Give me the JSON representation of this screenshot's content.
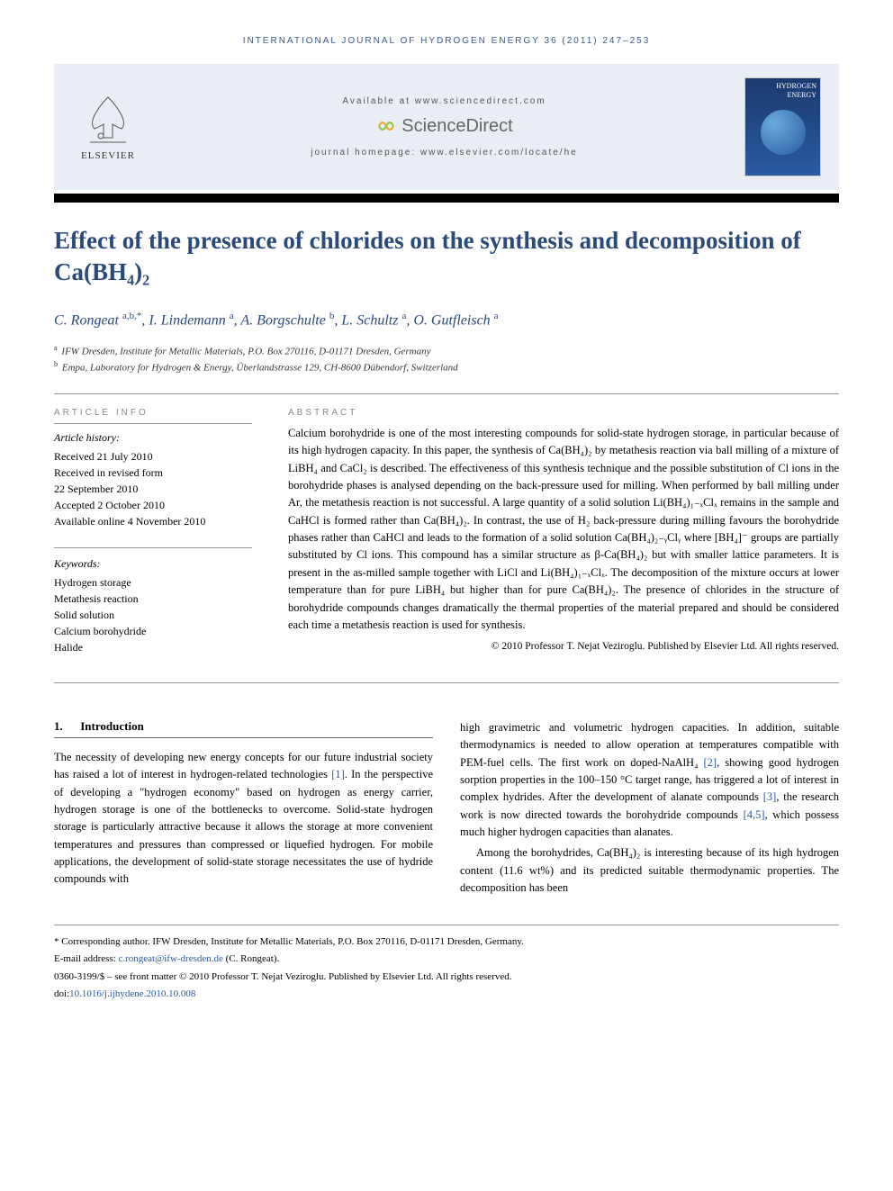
{
  "running_header": "INTERNATIONAL JOURNAL OF HYDROGEN ENERGY 36 (2011) 247–253",
  "banner": {
    "available_at": "Available at www.sciencedirect.com",
    "sciencedirect": "ScienceDirect",
    "homepage": "journal homepage: www.elsevier.com/locate/he",
    "elsevier": "ELSEVIER",
    "cover_text": "HYDROGEN ENERGY"
  },
  "title": "Effect of the presence of chlorides on the synthesis and decomposition of Ca(BH₄)₂",
  "authors_html": "C. Rongeat <sup>a,b,*</sup>, I. Lindemann <sup>a</sup>, A. Borgschulte <sup>b</sup>, L. Schultz <sup>a</sup>, O. Gutfleisch <sup>a</sup>",
  "affiliations": [
    {
      "sup": "a",
      "text": "IFW Dresden, Institute for Metallic Materials, P.O. Box 270116, D-01171 Dresden, Germany"
    },
    {
      "sup": "b",
      "text": "Empa, Laboratory for Hydrogen & Energy, Überlandstrasse 129, CH-8600 Dübendorf, Switzerland"
    }
  ],
  "article_info": {
    "header": "ARTICLE INFO",
    "history_label": "Article history:",
    "history": [
      "Received 21 July 2010",
      "Received in revised form",
      "22 September 2010",
      "Accepted 2 October 2010",
      "Available online 4 November 2010"
    ],
    "keywords_label": "Keywords:",
    "keywords": [
      "Hydrogen storage",
      "Metathesis reaction",
      "Solid solution",
      "Calcium borohydride",
      "Halide"
    ]
  },
  "abstract": {
    "header": "ABSTRACT",
    "text": "Calcium borohydride is one of the most interesting compounds for solid-state hydrogen storage, in particular because of its high hydrogen capacity. In this paper, the synthesis of Ca(BH₄)₂ by metathesis reaction via ball milling of a mixture of LiBH₄ and CaCl₂ is described. The effectiveness of this synthesis technique and the possible substitution of Cl ions in the borohydride phases is analysed depending on the back-pressure used for milling. When performed by ball milling under Ar, the metathesis reaction is not successful. A large quantity of a solid solution Li(BH₄)₁₋ₓClₓ remains in the sample and CaHCl is formed rather than Ca(BH₄)₂. In contrast, the use of H₂ back-pressure during milling favours the borohydride phases rather than CaHCl and leads to the formation of a solid solution Ca(BH₄)₂₋ᵧClᵧ where [BH₄]⁻ groups are partially substituted by Cl ions. This compound has a similar structure as β-Ca(BH₄)₂ but with smaller lattice parameters. It is present in the as-milled sample together with LiCl and Li(BH₄)₁₋ₓClₓ. The decomposition of the mixture occurs at lower temperature than for pure LiBH₄ but higher than for pure Ca(BH₄)₂. The presence of chlorides in the structure of borohydride compounds changes dramatically the thermal properties of the material prepared and should be considered each time a metathesis reaction is used for synthesis.",
    "copyright": "© 2010 Professor T. Nejat Veziroglu. Published by Elsevier Ltd. All rights reserved."
  },
  "section1": {
    "number": "1.",
    "heading": "Introduction",
    "col1": "The necessity of developing new energy concepts for our future industrial society has raised a lot of interest in hydrogen-related technologies [1]. In the perspective of developing a \"hydrogen economy\" based on hydrogen as energy carrier, hydrogen storage is one of the bottlenecks to overcome. Solid-state hydrogen storage is particularly attractive because it allows the storage at more convenient temperatures and pressures than compressed or liquefied hydrogen. For mobile applications, the development of solid-state storage necessitates the use of hydride compounds with",
    "col2_p1": "high gravimetric and volumetric hydrogen capacities. In addition, suitable thermodynamics is needed to allow operation at temperatures compatible with PEM-fuel cells. The first work on doped-NaAlH₄ [2], showing good hydrogen sorption properties in the 100–150 °C target range, has triggered a lot of interest in complex hydrides. After the development of alanate compounds [3], the research work is now directed towards the borohydride compounds [4,5], which possess much higher hydrogen capacities than alanates.",
    "col2_p2": "Among the borohydrides, Ca(BH₄)₂ is interesting because of its high hydrogen content (11.6 wt%) and its predicted suitable thermodynamic properties. The decomposition has been"
  },
  "footer": {
    "corresponding": "* Corresponding author. IFW Dresden, Institute for Metallic Materials, P.O. Box 270116, D-01171 Dresden, Germany.",
    "email_label": "E-mail address: ",
    "email": "c.rongeat@ifw-dresden.de",
    "email_suffix": " (C. Rongeat).",
    "issn": "0360-3199/$ – see front matter © 2010 Professor T. Nejat Veziroglu. Published by Elsevier Ltd. All rights reserved.",
    "doi_label": "doi:",
    "doi": "10.1016/j.ijhydene.2010.10.008"
  },
  "colors": {
    "heading_blue": "#2a4a7a",
    "link_blue": "#2a5aa0",
    "banner_bg": "#e8eef4",
    "cover_bg": "#2c5aa0"
  }
}
